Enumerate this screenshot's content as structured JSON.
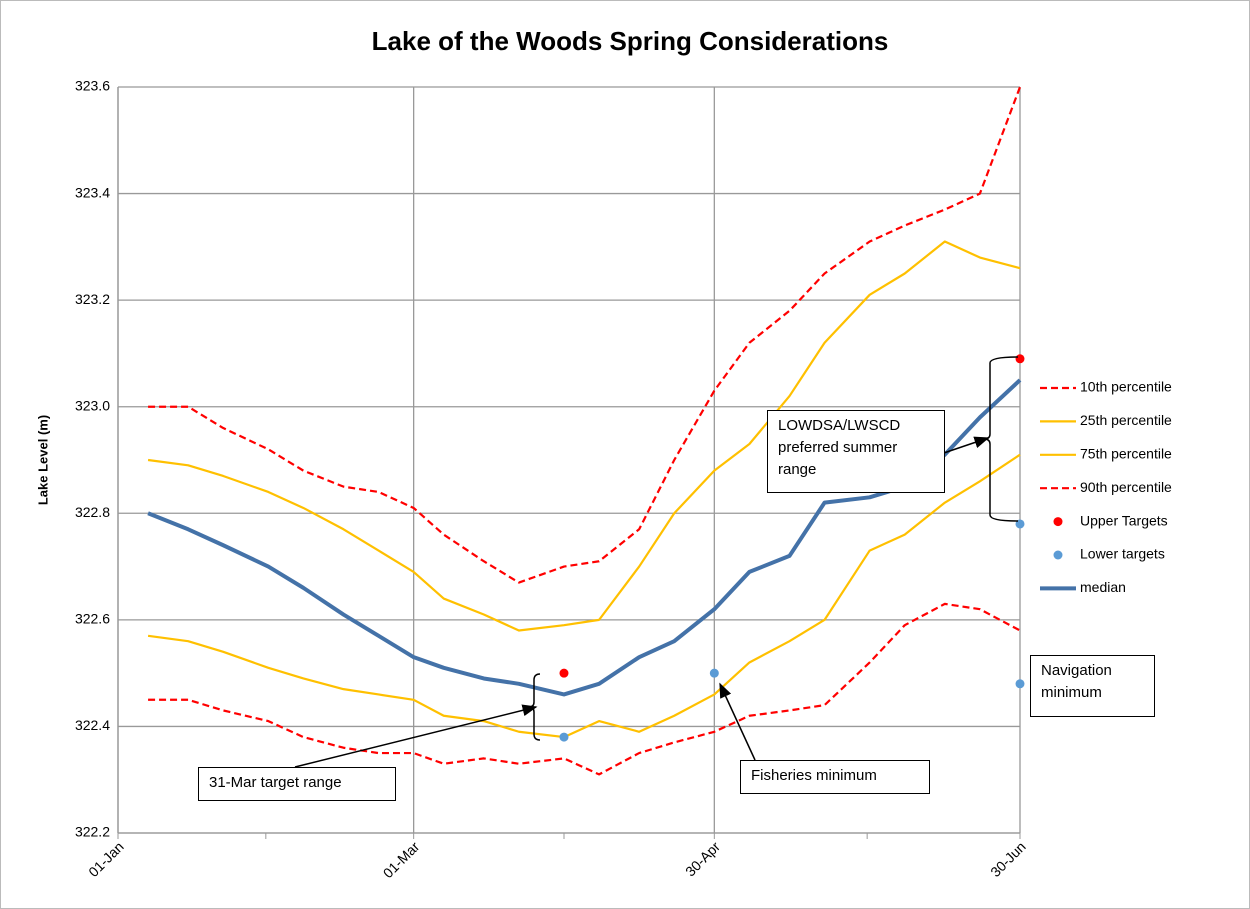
{
  "chart_data": {
    "type": "line",
    "title": "Lake of the Woods Spring Considerations",
    "y_label": "Lake Level (m)",
    "x": [
      "07-Jan",
      "15-Jan",
      "22-Jan",
      "31-Jan",
      "07-Feb",
      "15-Feb",
      "22-Feb",
      "01-Mar",
      "07-Mar",
      "15-Mar",
      "22-Mar",
      "31-Mar",
      "07-Apr",
      "15-Apr",
      "22-Apr",
      "30-Apr",
      "07-May",
      "15-May",
      "22-May",
      "31-May",
      "07-Jun",
      "15-Jun",
      "22-Jun",
      "30-Jun"
    ],
    "xlim": [
      "01-Jan",
      "30-Jun"
    ],
    "xticks": [
      "01-Jan",
      "01-Mar",
      "30-Apr",
      "30-Jun"
    ],
    "ylim": [
      322.2,
      323.6
    ],
    "yticks": [
      322.2,
      322.4,
      322.6,
      322.8,
      {
        "value": 323,
        "label": "323.0"
      },
      323.2,
      323.4,
      323.6
    ],
    "grid": true,
    "series": [
      {
        "name": "10th percentile",
        "color": "#ff0000",
        "dashed": true,
        "values": [
          323.0,
          323.0,
          322.96,
          322.92,
          322.88,
          322.85,
          322.84,
          322.81,
          322.76,
          322.71,
          322.67,
          322.7,
          322.71,
          322.77,
          322.9,
          323.03,
          323.12,
          323.18,
          323.25,
          323.31,
          323.34,
          323.37,
          323.4,
          323.6
        ]
      },
      {
        "name": "25th percentile",
        "color": "#ffc000",
        "values": [
          322.9,
          322.89,
          322.87,
          322.84,
          322.81,
          322.77,
          322.73,
          322.69,
          322.64,
          322.61,
          322.58,
          322.59,
          322.6,
          322.7,
          322.8,
          322.88,
          322.93,
          323.02,
          323.12,
          323.21,
          323.25,
          323.31,
          323.28,
          323.26
        ]
      },
      {
        "name": "75th percentile",
        "color": "#ffc000",
        "values": [
          322.57,
          322.56,
          322.54,
          322.51,
          322.49,
          322.47,
          322.46,
          322.45,
          322.42,
          322.41,
          322.39,
          322.38,
          322.41,
          322.39,
          322.42,
          322.46,
          322.52,
          322.56,
          322.6,
          322.73,
          322.76,
          322.82,
          322.86,
          322.91
        ]
      },
      {
        "name": "90th percentile",
        "color": "#ff0000",
        "dashed": true,
        "values": [
          322.45,
          322.45,
          322.43,
          322.41,
          322.38,
          322.36,
          322.35,
          322.35,
          322.33,
          322.34,
          322.33,
          322.34,
          322.31,
          322.35,
          322.37,
          322.39,
          322.42,
          322.43,
          322.44,
          322.52,
          322.59,
          322.63,
          322.62,
          322.58
        ]
      },
      {
        "name": "Upper Targets",
        "color": "#ff0000",
        "markers": true,
        "x": [
          "31-Mar",
          "30-Jun"
        ],
        "values": [
          322.5,
          323.09
        ]
      },
      {
        "name": "Lower targets",
        "color": "#5b9bd5",
        "markers": true,
        "x": [
          "31-Mar",
          "30-Apr",
          "30-Jun",
          "30-Jun"
        ],
        "values": [
          322.38,
          322.5,
          322.78,
          322.48
        ]
      },
      {
        "name": "median",
        "color": "#4472a8",
        "width": 4,
        "values": [
          322.8,
          322.77,
          322.74,
          322.7,
          322.66,
          322.61,
          322.57,
          322.53,
          322.51,
          322.49,
          322.48,
          322.46,
          322.48,
          322.53,
          322.56,
          322.62,
          322.69,
          322.72,
          322.82,
          322.83,
          322.85,
          322.91,
          322.98,
          323.05
        ]
      }
    ],
    "annotations": [
      "31-Mar target range",
      "Fisheries minimum",
      "Navigation minimum",
      "LOWDSA/LWSCD preferred summer range"
    ]
  }
}
